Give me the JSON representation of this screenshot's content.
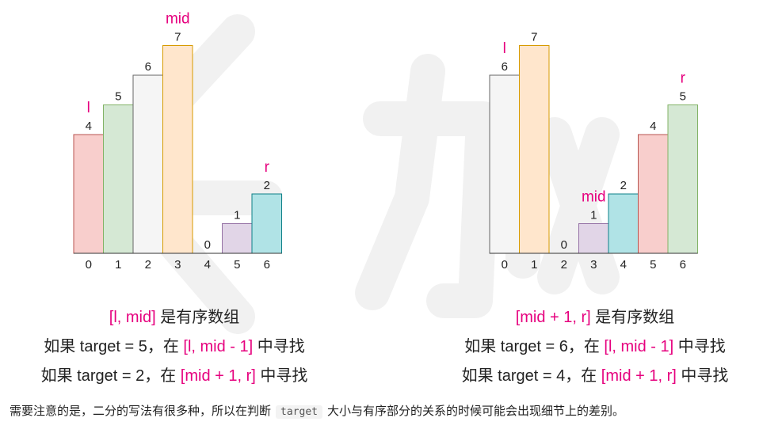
{
  "colors": {
    "pointer": "#e6007e",
    "text": "#222222",
    "axis": "#333333"
  },
  "diagrams": [
    {
      "bars": [
        {
          "index": "0",
          "value": 4,
          "fill": "#f8cecc",
          "stroke": "#b85450"
        },
        {
          "index": "1",
          "value": 5,
          "fill": "#d5e8d4",
          "stroke": "#82b366"
        },
        {
          "index": "2",
          "value": 6,
          "fill": "#f5f5f5",
          "stroke": "#666666"
        },
        {
          "index": "3",
          "value": 7,
          "fill": "#ffe6cc",
          "stroke": "#d79b00"
        },
        {
          "index": "4",
          "value": 0,
          "fill": "#ffffff",
          "stroke": "#333333"
        },
        {
          "index": "5",
          "value": 1,
          "fill": "#e1d5e7",
          "stroke": "#9673a6"
        },
        {
          "index": "6",
          "value": 2,
          "fill": "#b0e3e6",
          "stroke": "#0e8088"
        }
      ],
      "pointers": [
        {
          "label": "l",
          "at": 0
        },
        {
          "label": "mid",
          "at": 3
        },
        {
          "label": "r",
          "at": 6
        }
      ],
      "captions": [
        [
          {
            "t": "[l, mid]",
            "hl": true
          },
          {
            "t": " 是有序数组",
            "hl": false
          }
        ],
        [
          {
            "t": "如果 target = 5，在 ",
            "hl": false
          },
          {
            "t": "[l, mid - 1]",
            "hl": true
          },
          {
            "t": " 中寻找",
            "hl": false
          }
        ],
        [
          {
            "t": "如果 target = 2，在 ",
            "hl": false
          },
          {
            "t": "[mid + 1, r]",
            "hl": true
          },
          {
            "t": " 中寻找",
            "hl": false
          }
        ]
      ]
    },
    {
      "bars": [
        {
          "index": "0",
          "value": 6,
          "fill": "#f5f5f5",
          "stroke": "#666666"
        },
        {
          "index": "1",
          "value": 7,
          "fill": "#ffe6cc",
          "stroke": "#d79b00"
        },
        {
          "index": "2",
          "value": 0,
          "fill": "#ffffff",
          "stroke": "#333333"
        },
        {
          "index": "3",
          "value": 1,
          "fill": "#e1d5e7",
          "stroke": "#9673a6"
        },
        {
          "index": "4",
          "value": 2,
          "fill": "#b0e3e6",
          "stroke": "#0e8088"
        },
        {
          "index": "5",
          "value": 4,
          "fill": "#f8cecc",
          "stroke": "#b85450"
        },
        {
          "index": "6",
          "value": 5,
          "fill": "#d5e8d4",
          "stroke": "#82b366"
        }
      ],
      "pointers": [
        {
          "label": "l",
          "at": 0
        },
        {
          "label": "mid",
          "at": 3
        },
        {
          "label": "r",
          "at": 6
        }
      ],
      "captions": [
        [
          {
            "t": "[mid + 1, r]",
            "hl": true
          },
          {
            "t": " 是有序数组",
            "hl": false
          }
        ],
        [
          {
            "t": "如果 target = 6，在 ",
            "hl": false
          },
          {
            "t": "[l, mid - 1]",
            "hl": true
          },
          {
            "t": " 中寻找",
            "hl": false
          }
        ],
        [
          {
            "t": "如果 target = 4，在 ",
            "hl": false
          },
          {
            "t": "[mid + 1, r]",
            "hl": true
          },
          {
            "t": " 中寻找",
            "hl": false
          }
        ]
      ]
    }
  ],
  "note": {
    "before": "需要注意的是，二分的写法有很多种，所以在判断",
    "code": "target",
    "after": "大小与有序部分的关系的时候可能会出现细节上的差别。"
  }
}
